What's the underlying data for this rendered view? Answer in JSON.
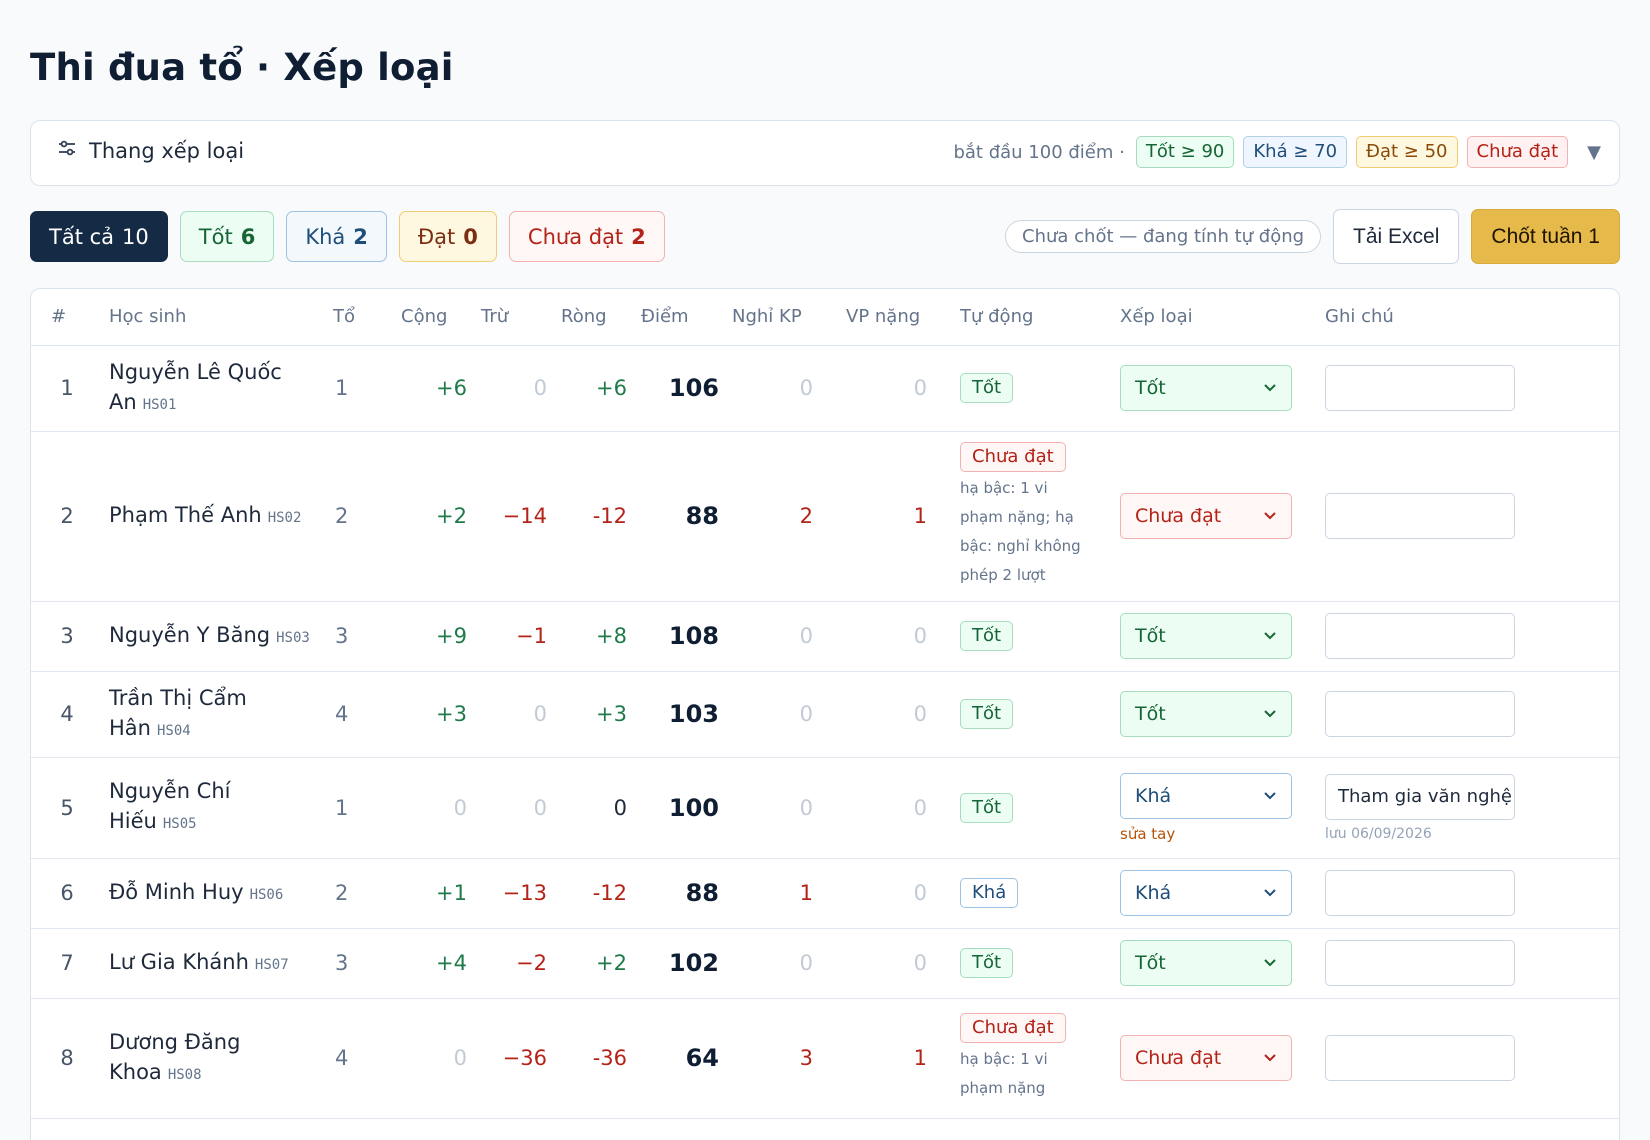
{
  "page": {
    "title": "Thi đua tổ · Xếp loại"
  },
  "scale": {
    "label": "Thang xếp loại",
    "note": "bắt đầu 100 điểm ·",
    "chips": [
      "Tốt ≥ 90",
      "Khá ≥ 70",
      "Đạt ≥ 50",
      "Chưa đạt"
    ]
  },
  "filters": [
    {
      "label": "Tất cả",
      "count": "10"
    },
    {
      "label": "Tốt",
      "count": "6"
    },
    {
      "label": "Khá",
      "count": "2"
    },
    {
      "label": "Đạt",
      "count": "0"
    },
    {
      "label": "Chưa đạt",
      "count": "2"
    }
  ],
  "toolbar": {
    "status": "Chưa chốt — đang tính tự động",
    "excel_label": "Tải Excel",
    "close_label": "Chốt tuần 1"
  },
  "columns": [
    "#",
    "Học sinh",
    "Tổ",
    "Cộng",
    "Trừ",
    "Ròng",
    "Điểm",
    "Nghỉ KP",
    "VP nặng",
    "Tự động",
    "Xếp loại",
    "Ghi chú"
  ],
  "rows": [
    {
      "idx": "1",
      "name_l1": "Nguyễn Lê Quốc",
      "name_l2": "An",
      "code": "HS01",
      "team": "1",
      "plus": "+6",
      "minus": "0",
      "net": "+6",
      "score": "106",
      "absent": "0",
      "severe": "0",
      "auto": "Tốt",
      "reason": "",
      "grade": "Tốt",
      "manual": "",
      "note": "",
      "saved": ""
    },
    {
      "idx": "2",
      "name_l1": "Phạm Thế Anh",
      "name_l2": "",
      "code": "HS02",
      "team": "2",
      "plus": "+2",
      "minus": "−14",
      "net": "-12",
      "score": "88",
      "absent": "2",
      "severe": "1",
      "auto": "Chưa đạt",
      "reason": "hạ bậc: 1 vi phạm nặng; hạ bậc: nghỉ không phép 2 lượt",
      "grade": "Chưa đạt",
      "manual": "",
      "note": "",
      "saved": ""
    },
    {
      "idx": "3",
      "name_l1": "Nguyễn Y Băng",
      "name_l2": "",
      "code": "HS03",
      "team": "3",
      "plus": "+9",
      "minus": "−1",
      "net": "+8",
      "score": "108",
      "absent": "0",
      "severe": "0",
      "auto": "Tốt",
      "reason": "",
      "grade": "Tốt",
      "manual": "",
      "note": "",
      "saved": ""
    },
    {
      "idx": "4",
      "name_l1": "Trần Thị Cẩm",
      "name_l2": "Hân",
      "code": "HS04",
      "team": "4",
      "plus": "+3",
      "minus": "0",
      "net": "+3",
      "score": "103",
      "absent": "0",
      "severe": "0",
      "auto": "Tốt",
      "reason": "",
      "grade": "Tốt",
      "manual": "",
      "note": "",
      "saved": ""
    },
    {
      "idx": "5",
      "name_l1": "Nguyễn Chí",
      "name_l2": "Hiếu",
      "code": "HS05",
      "team": "1",
      "plus": "0",
      "minus": "0",
      "net": "0",
      "score": "100",
      "absent": "0",
      "severe": "0",
      "auto": "Tốt",
      "reason": "",
      "grade": "Khá",
      "manual": "sửa tay",
      "note": "Tham gia văn nghệ",
      "saved": "lưu 06/09/2026"
    },
    {
      "idx": "6",
      "name_l1": "Đỗ Minh Huy",
      "name_l2": "",
      "code": "HS06",
      "team": "2",
      "plus": "+1",
      "minus": "−13",
      "net": "-12",
      "score": "88",
      "absent": "1",
      "severe": "0",
      "auto": "Khá",
      "reason": "",
      "grade": "Khá",
      "manual": "",
      "note": "",
      "saved": ""
    },
    {
      "idx": "7",
      "name_l1": "Lư Gia Khánh",
      "name_l2": "",
      "code": "HS07",
      "team": "3",
      "plus": "+4",
      "minus": "−2",
      "net": "+2",
      "score": "102",
      "absent": "0",
      "severe": "0",
      "auto": "Tốt",
      "reason": "",
      "grade": "Tốt",
      "manual": "",
      "note": "",
      "saved": ""
    },
    {
      "idx": "8",
      "name_l1": "Dương Đăng",
      "name_l2": "Khoa",
      "code": "HS08",
      "team": "4",
      "plus": "0",
      "minus": "−36",
      "net": "-36",
      "score": "64",
      "absent": "3",
      "severe": "1",
      "auto": "Chưa đạt",
      "reason": "hạ bậc: 1 vi phạm nặng",
      "grade": "Chưa đạt",
      "manual": "",
      "note": "",
      "saved": ""
    }
  ],
  "colors": {
    "good": "#166534",
    "fair": "#1e4e79",
    "pass": "#8a4b08",
    "fail": "#b42318",
    "accent": "#e5b94a",
    "dark": "#152a45"
  }
}
